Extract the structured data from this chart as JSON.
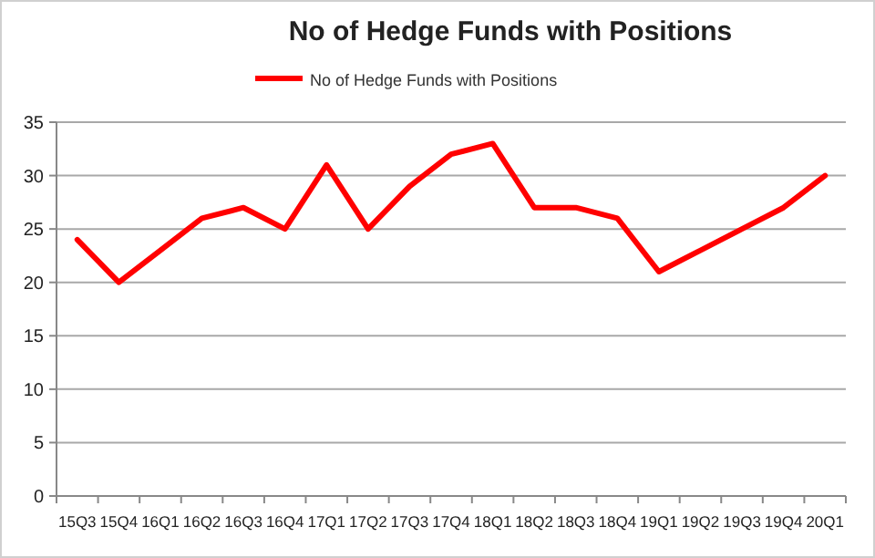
{
  "chart_data": {
    "type": "line",
    "title": "No of Hedge Funds with Positions",
    "categories": [
      "15Q3",
      "15Q4",
      "16Q1",
      "16Q2",
      "16Q3",
      "16Q4",
      "17Q1",
      "17Q2",
      "17Q3",
      "17Q4",
      "18Q1",
      "18Q2",
      "18Q3",
      "18Q4",
      "19Q1",
      "19Q2",
      "19Q3",
      "19Q4",
      "20Q1"
    ],
    "series": [
      {
        "name": "No of Hedge Funds with Positions",
        "color": "#ff0000",
        "values": [
          24,
          20,
          23,
          26,
          27,
          25,
          31,
          25,
          29,
          32,
          33,
          27,
          27,
          26,
          21,
          23,
          25,
          27,
          30
        ]
      }
    ],
    "ylim": [
      0,
      35
    ],
    "yticks": [
      0,
      5,
      10,
      15,
      20,
      25,
      30,
      35
    ],
    "grid": "y",
    "legend": "top",
    "marker": "none",
    "line_style": "solid"
  }
}
